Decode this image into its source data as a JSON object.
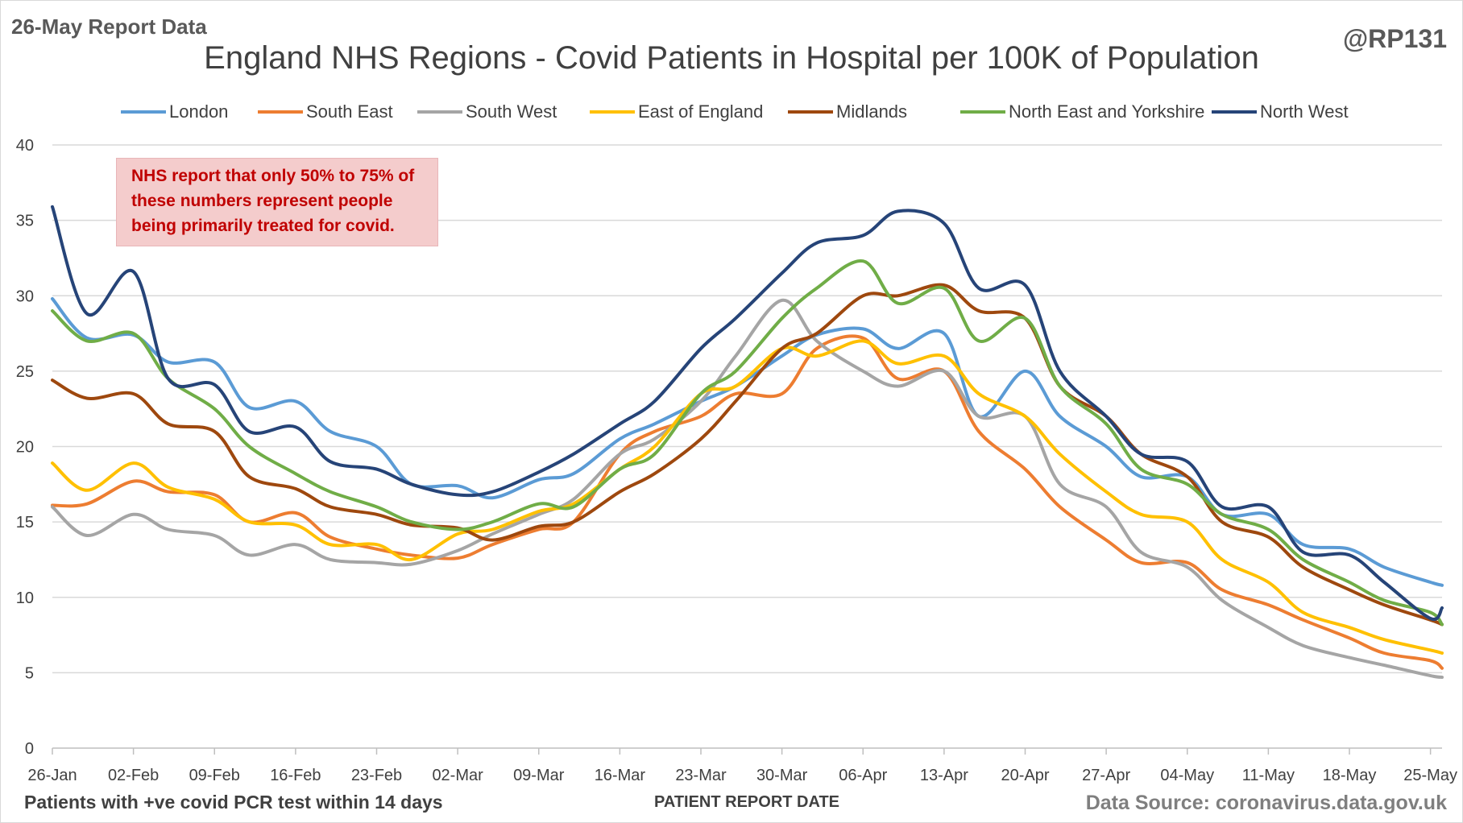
{
  "report_tag": "26-May Report Data",
  "handle": "@RP131",
  "footer": {
    "left": "Patients with +ve covid PCR test within 14 days",
    "center": "PATIENT REPORT DATE",
    "right": "Data Source: coronavirus.data.gov.uk"
  },
  "note": {
    "lines": [
      "NHS report that only 50% to 75% of",
      "these numbers represent people",
      "being primarily treated for covid."
    ]
  },
  "chart_data": {
    "type": "line",
    "title": "England NHS Regions - Covid Patients in Hospital per 100K of Population",
    "xlabel": "PATIENT REPORT DATE",
    "ylabel": "",
    "ylim": [
      0,
      40
    ],
    "yticks": [
      0,
      5,
      10,
      15,
      20,
      25,
      30,
      35,
      40
    ],
    "grid": "horizontal",
    "legend_position": "top",
    "x_tick_labels": [
      "26-Jan",
      "02-Feb",
      "09-Feb",
      "16-Feb",
      "23-Feb",
      "02-Mar",
      "09-Mar",
      "16-Mar",
      "23-Mar",
      "30-Mar",
      "06-Apr",
      "13-Apr",
      "20-Apr",
      "27-Apr",
      "04-May",
      "11-May",
      "18-May",
      "25-May"
    ],
    "x": [
      "26-Jan",
      "29-Jan",
      "02-Feb",
      "05-Feb",
      "09-Feb",
      "12-Feb",
      "16-Feb",
      "19-Feb",
      "23-Feb",
      "26-Feb",
      "02-Mar",
      "05-Mar",
      "09-Mar",
      "12-Mar",
      "16-Mar",
      "19-Mar",
      "23-Mar",
      "26-Mar",
      "30-Mar",
      "02-Apr",
      "06-Apr",
      "09-Apr",
      "13-Apr",
      "16-Apr",
      "20-Apr",
      "23-Apr",
      "27-Apr",
      "30-Apr",
      "04-May",
      "07-May",
      "11-May",
      "14-May",
      "18-May",
      "21-May",
      "25-May",
      "26-May"
    ],
    "series": [
      {
        "name": "London",
        "color": "#5b9bd5",
        "values": [
          29.8,
          27.2,
          27.4,
          25.6,
          25.6,
          22.6,
          23.0,
          21.0,
          20.0,
          17.5,
          17.4,
          16.6,
          17.8,
          18.2,
          20.5,
          21.5,
          23.0,
          24.0,
          26.0,
          27.4,
          27.8,
          26.5,
          27.5,
          22.0,
          25.0,
          22.0,
          20.0,
          18.0,
          18.0,
          15.5,
          15.5,
          13.5,
          13.2,
          12.0,
          11.0,
          10.8
        ]
      },
      {
        "name": "South East",
        "color": "#ed7d31",
        "values": [
          16.1,
          16.2,
          17.7,
          17.0,
          16.8,
          15.0,
          15.6,
          14.0,
          13.2,
          12.8,
          12.6,
          13.5,
          14.5,
          15.0,
          19.5,
          21.0,
          22.0,
          23.5,
          23.5,
          26.5,
          27.2,
          24.5,
          25.0,
          21.0,
          18.5,
          16.0,
          13.8,
          12.3,
          12.3,
          10.5,
          9.5,
          8.5,
          7.3,
          6.3,
          5.8,
          5.3
        ]
      },
      {
        "name": "South West",
        "color": "#a5a5a5",
        "values": [
          16.0,
          14.1,
          15.5,
          14.5,
          14.1,
          12.8,
          13.5,
          12.5,
          12.3,
          12.2,
          13.1,
          14.2,
          15.5,
          16.5,
          19.5,
          20.5,
          23.0,
          26.0,
          29.7,
          27.0,
          25.0,
          24.0,
          25.0,
          22.0,
          22.0,
          17.5,
          16.0,
          13.0,
          12.0,
          9.8,
          8.0,
          6.8,
          6.0,
          5.5,
          4.8,
          4.7
        ]
      },
      {
        "name": "East of England",
        "color": "#ffc000",
        "values": [
          18.9,
          17.1,
          18.9,
          17.3,
          16.5,
          15.0,
          14.8,
          13.5,
          13.5,
          12.5,
          14.2,
          14.5,
          15.7,
          16.2,
          18.5,
          20.0,
          23.5,
          24.0,
          26.5,
          26.0,
          27.0,
          25.5,
          26.0,
          23.5,
          22.0,
          19.5,
          17.0,
          15.5,
          15.0,
          12.5,
          11.0,
          9.0,
          8.0,
          7.2,
          6.5,
          6.3
        ]
      },
      {
        "name": "Midlands",
        "color": "#9e480e",
        "values": [
          24.4,
          23.2,
          23.5,
          21.5,
          21.0,
          18.0,
          17.2,
          16.0,
          15.5,
          14.8,
          14.6,
          13.8,
          14.7,
          15.0,
          17.0,
          18.2,
          20.5,
          23.0,
          26.5,
          27.5,
          30.0,
          30.0,
          30.7,
          29.0,
          28.5,
          24.0,
          22.0,
          19.5,
          18.0,
          15.0,
          14.0,
          12.0,
          10.5,
          9.5,
          8.5,
          8.2
        ]
      },
      {
        "name": "North East and Yorkshire",
        "color": "#70ad47",
        "values": [
          29.0,
          27.0,
          27.5,
          24.5,
          22.5,
          20.0,
          18.2,
          17.0,
          16.0,
          15.0,
          14.5,
          15.0,
          16.2,
          16.0,
          18.5,
          19.5,
          23.5,
          25.0,
          28.5,
          30.5,
          32.3,
          29.5,
          30.5,
          27.0,
          28.5,
          24.0,
          21.5,
          18.5,
          17.5,
          15.5,
          14.5,
          12.5,
          11.0,
          9.8,
          9.0,
          8.2
        ]
      },
      {
        "name": "North West",
        "color": "#264478",
        "values": [
          35.9,
          28.8,
          31.6,
          24.5,
          24.1,
          21.0,
          21.3,
          19.0,
          18.5,
          17.5,
          16.8,
          17.0,
          18.3,
          19.5,
          21.5,
          23.0,
          26.5,
          28.5,
          31.5,
          33.5,
          34.0,
          35.6,
          34.8,
          30.5,
          30.7,
          25.0,
          22.0,
          19.5,
          19.0,
          16.0,
          16.0,
          13.0,
          12.8,
          11.0,
          8.6,
          9.3
        ]
      }
    ]
  }
}
